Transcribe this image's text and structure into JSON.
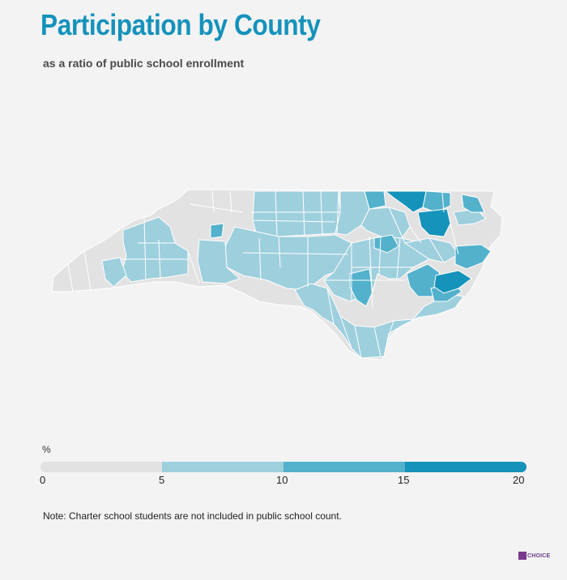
{
  "title": "Participation by County",
  "subtitle": "as a ratio of public school enrollment",
  "legend": {
    "unit": "%",
    "ticks": [
      "0",
      "5",
      "10",
      "15",
      "20"
    ],
    "colors": [
      "#e2e2e2",
      "#9ecfdd",
      "#53b1cc",
      "#1593bb"
    ]
  },
  "note": "Note: Charter school students are not included in public school count.",
  "logo_text": "CHOICE",
  "map_colors": {
    "none": "#e2e2e2",
    "low": "#9ecfdd",
    "mid": "#53b1cc",
    "high": "#1593bb",
    "border": "#ffffff"
  }
}
